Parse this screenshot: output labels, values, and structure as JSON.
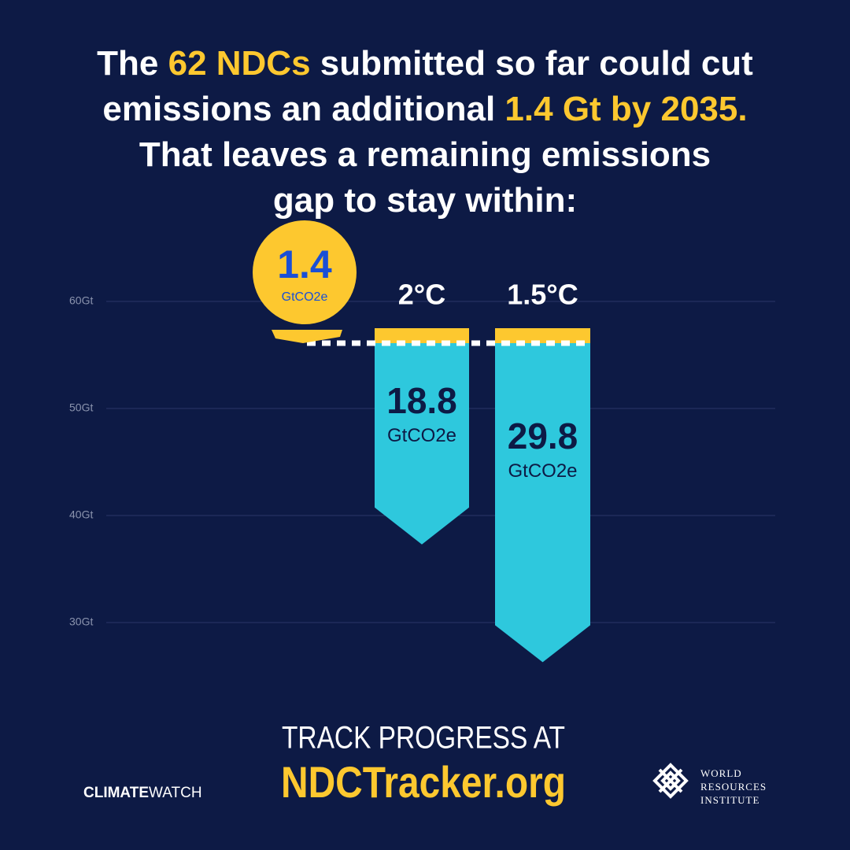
{
  "chart_data": {
    "type": "bar",
    "title_lines": [
      [
        {
          "text": "The ",
          "highlight": false
        },
        {
          "text": "62 NDCs",
          "highlight": true
        },
        {
          "text": " submitted so far could cut",
          "highlight": false
        }
      ],
      [
        {
          "text": "emissions an additional ",
          "highlight": false
        },
        {
          "text": "1.4 Gt by 2035.",
          "highlight": true
        }
      ],
      [
        {
          "text": "That leaves a remaining emissions",
          "highlight": false
        }
      ],
      [
        {
          "text": "gap to stay within:",
          "highlight": false
        }
      ]
    ],
    "current_level": 57.5,
    "reduction": 1.4,
    "unit": "GtCO2e",
    "categories": [
      "2°C",
      "1.5°C"
    ],
    "values": [
      18.8,
      29.8
    ],
    "ylim": [
      22,
      63
    ],
    "yticks": [
      {
        "value": 30,
        "label": "30Gt"
      },
      {
        "value": 40,
        "label": "40Gt"
      },
      {
        "value": 50,
        "label": "50Gt"
      },
      {
        "value": 60,
        "label": "60Gt"
      }
    ],
    "grid": true,
    "reduction_color": "#fdc82f",
    "color": "#2ec8dd",
    "highlight_color": "#fdc82f",
    "badge_text_color": "#1a4fd6",
    "footer": {
      "line1": "TRACK PROGRESS AT",
      "line2": "NDCTracker.org"
    },
    "logos": {
      "climate_watch": [
        "CLIMATE",
        "WATCH"
      ],
      "wri": [
        "WORLD",
        "RESOURCES",
        "INSTITUTE"
      ]
    }
  }
}
